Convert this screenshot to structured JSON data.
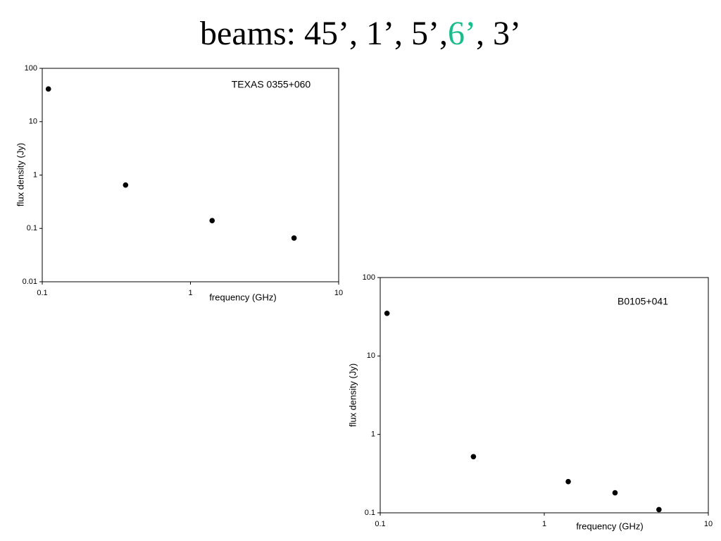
{
  "slide": {
    "title_parts": [
      {
        "text": "beams: 45’, 1’, 5’,",
        "color": "#000000"
      },
      {
        "text": "6’",
        "color": "#1abc8c"
      },
      {
        "text": ", 3’",
        "color": "#000000"
      }
    ]
  },
  "chart_data": [
    {
      "type": "scatter",
      "annotation": "TEXAS 0355+060",
      "x_label": "frequency (GHz)",
      "y_label": "flux density (Jy)",
      "x": [
        0.11,
        0.365,
        1.4,
        5.0
      ],
      "values": [
        41,
        0.65,
        0.14,
        0.066
      ],
      "color": "#000000",
      "log_x": true,
      "log_y": true,
      "xlim": [
        0.1,
        10
      ],
      "xticks": [
        0.1,
        1,
        10
      ],
      "ylim": [
        0.01,
        100
      ],
      "yticks": [
        0.01,
        0.1,
        1,
        10,
        100
      ]
    },
    {
      "type": "scatter",
      "annotation": "B0105+041",
      "x_label": "frequency (GHz)",
      "y_label": "flux density (Jy)",
      "x": [
        0.11,
        0.37,
        1.4,
        2.7,
        5.0
      ],
      "values": [
        35,
        0.52,
        0.25,
        0.18,
        0.11
      ],
      "color": "#000000",
      "log_x": true,
      "log_y": true,
      "xlim": [
        0.1,
        10
      ],
      "xticks": [
        0.1,
        1,
        10
      ],
      "ylim": [
        0.1,
        100
      ],
      "yticks": [
        0.1,
        1,
        10,
        100
      ]
    }
  ]
}
